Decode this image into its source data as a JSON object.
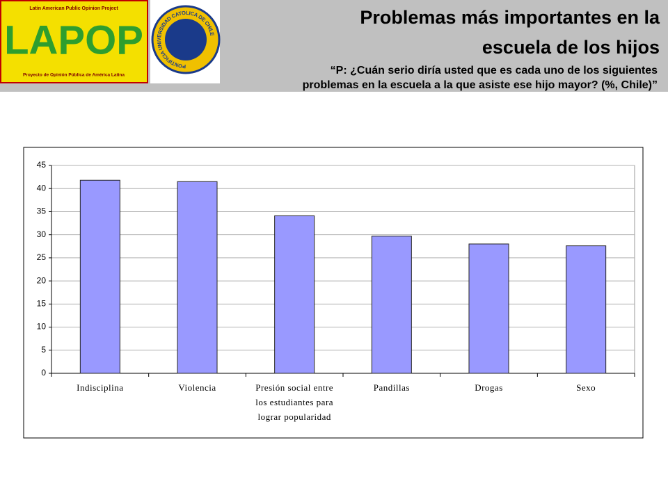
{
  "header": {
    "logo_top": "Latin American Public Opinion Project",
    "logo_main": "LAPOP",
    "logo_bottom": "Proyecto de Opinión Pública de América Latina",
    "university": "PONTIFICIA UNIVERSIDAD CATOLICA DE CHILE",
    "title_lines": [
      "Problemas más importantes en la",
      "escuela de los hijos"
    ],
    "subtitle_lines": [
      "“P: ¿Cuán serio diría usted que es cada uno de los siguientes",
      "problemas en la escuela a la que asiste ese hijo mayor? (%, Chile)”"
    ]
  },
  "chart_data": {
    "type": "bar",
    "categories": [
      "Indisciplina",
      "Violencia",
      "Presión social entre\nlos estudiantes para\nlograr popularidad",
      "Pandillas",
      "Drogas",
      "Sexo"
    ],
    "values": [
      41.8,
      41.5,
      34.1,
      29.7,
      28,
      27.6
    ],
    "color": "#9999ff",
    "ylim": [
      0,
      45
    ],
    "yticks": [
      0,
      5,
      10,
      15,
      20,
      25,
      30,
      35,
      40,
      45
    ],
    "grid": true
  }
}
